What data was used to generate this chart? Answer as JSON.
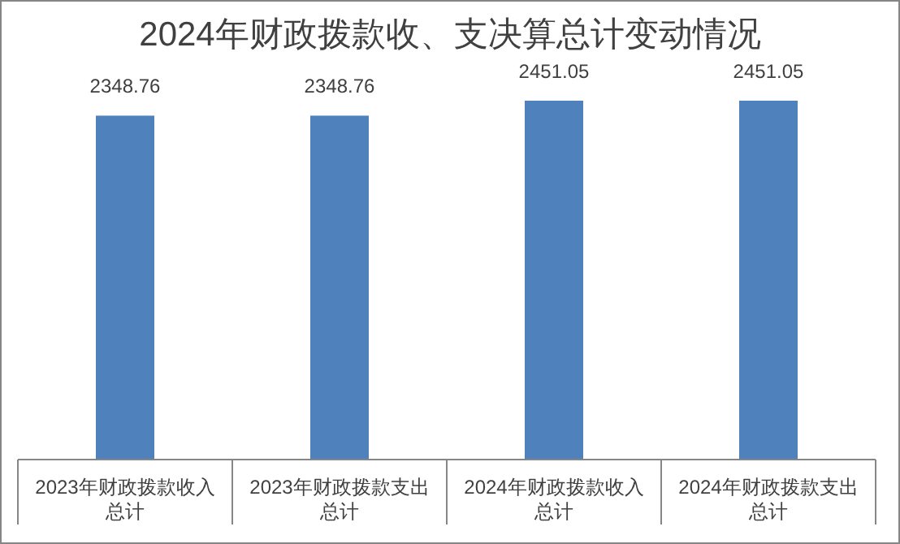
{
  "chart_data": {
    "type": "bar",
    "title": "2024年财政拨款收、支决算总计变动情况",
    "categories": [
      "2023年财政拨款收入总计",
      "2023年财政拨款支出总计",
      "2024年财政拨款收入总计",
      "2024年财政拨款支出总计"
    ],
    "values": [
      2348.76,
      2348.76,
      2451.05,
      2451.05
    ],
    "color": "#4f81bd",
    "data_labels": true
  }
}
